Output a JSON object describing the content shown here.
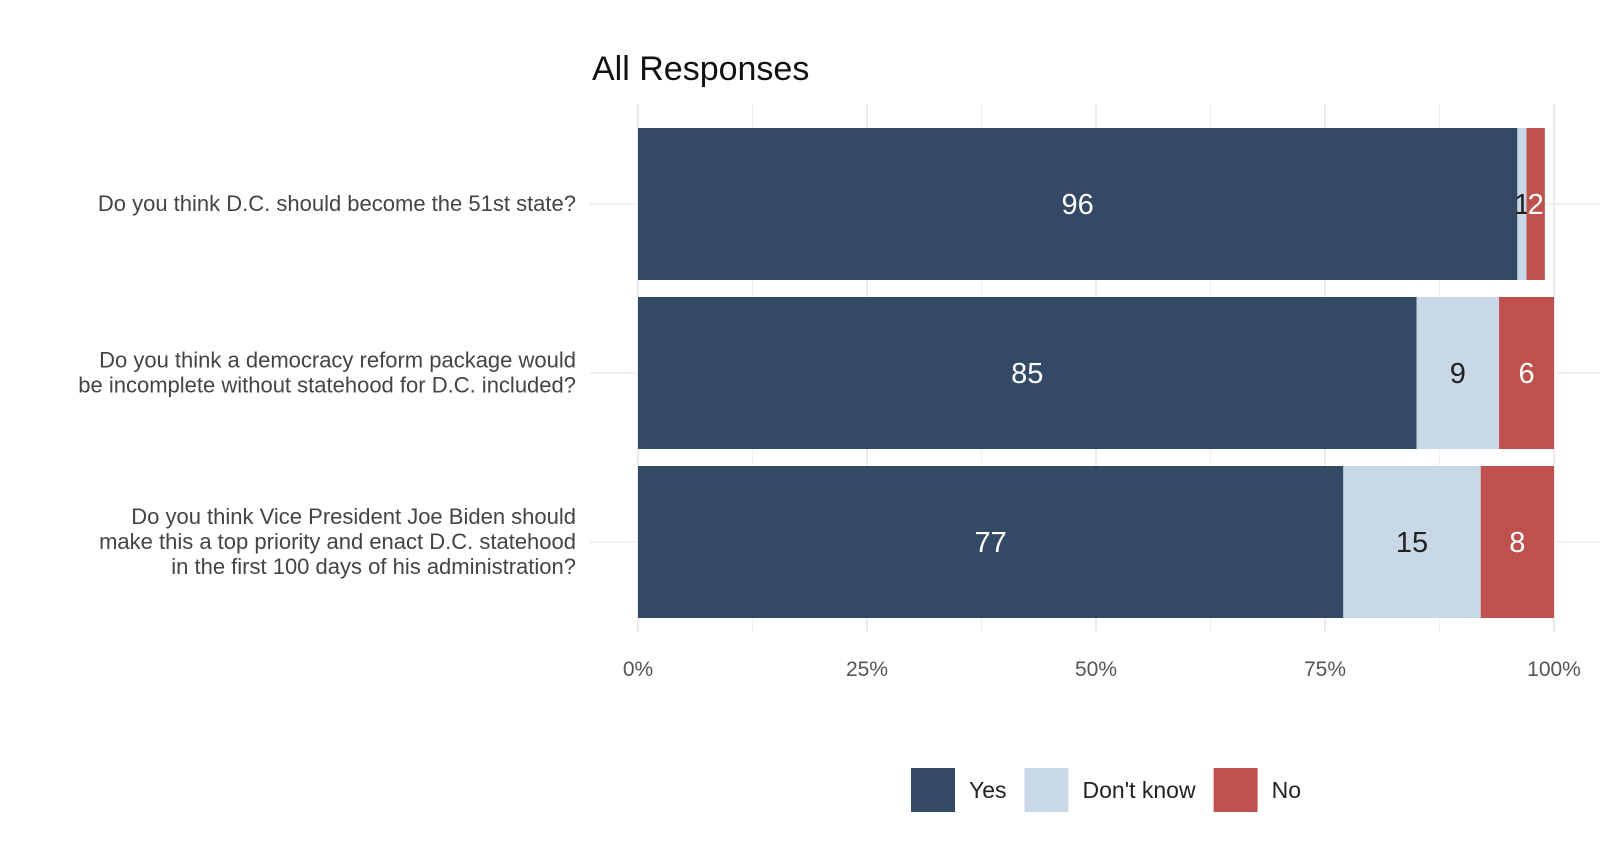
{
  "chart_data": {
    "type": "bar",
    "orientation": "horizontal",
    "stacked": true,
    "title": "All Responses",
    "categories": [
      [
        "Do you think D.C. should become the 51st state?"
      ],
      [
        "Do you think a democracy reform package would",
        "be incomplete without statehood for D.C. included?"
      ],
      [
        "Do you think Vice President Joe Biden should",
        "make this a top priority and enact D.C. statehood",
        "in the first 100 days of his administration?"
      ]
    ],
    "series": [
      {
        "name": "Yes",
        "color": "#344966",
        "label_color": "#ffffff",
        "values": [
          96,
          85,
          77
        ]
      },
      {
        "name": "Don't know",
        "color": "#c8d8e6",
        "label_color": "#222222",
        "values": [
          1,
          9,
          15
        ]
      },
      {
        "name": "No",
        "color": "#c0504d",
        "label_color": "#ffffff",
        "values": [
          2,
          6,
          8
        ]
      }
    ],
    "xlim": [
      0,
      100
    ],
    "xticks": [
      "0%",
      "25%",
      "50%",
      "75%",
      "100%"
    ],
    "grid": true,
    "legend_position": "bottom"
  }
}
